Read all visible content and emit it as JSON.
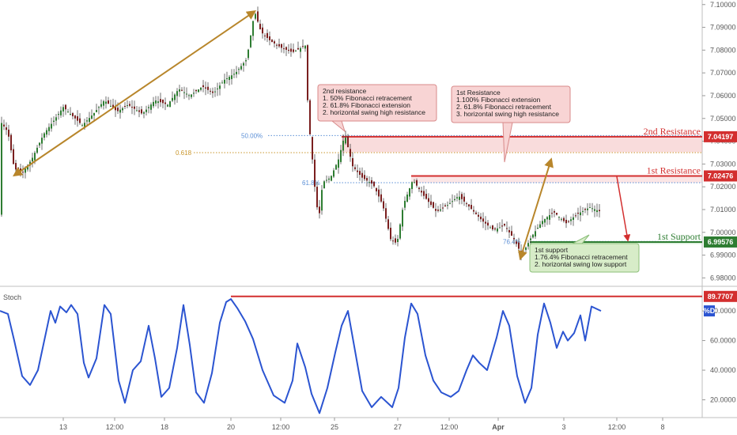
{
  "chart_data": [
    {
      "type": "candlestick",
      "price_axis": {
        "ylim": [
          6.977,
          7.102
        ],
        "ticks": [
          6.98,
          6.99,
          7.0,
          7.01,
          7.02,
          7.03,
          7.04,
          7.05,
          7.06,
          7.07,
          7.08,
          7.09,
          7.1
        ],
        "tick_labels": [
          "6.98000",
          "6.99000",
          "7.00000",
          "7.01000",
          "7.02000",
          "7.03000",
          "7.04000",
          "7.05000",
          "7.06000",
          "7.07000",
          "7.08000",
          "7.09000",
          "7.10000"
        ]
      },
      "time_axis": {
        "labels": [
          "13",
          "12:00",
          "18",
          "20",
          "12:00",
          "25",
          "27",
          "12:00",
          "Apr",
          "3",
          "12:00",
          "8"
        ]
      },
      "price_path": [
        [
          0,
          7.049
        ],
        [
          10,
          7.044
        ],
        [
          18,
          7.028
        ],
        [
          28,
          7.026
        ],
        [
          40,
          7.032
        ],
        [
          55,
          7.043
        ],
        [
          68,
          7.049
        ],
        [
          80,
          7.055
        ],
        [
          92,
          7.051
        ],
        [
          104,
          7.047
        ],
        [
          118,
          7.052
        ],
        [
          132,
          7.058
        ],
        [
          148,
          7.053
        ],
        [
          162,
          7.056
        ],
        [
          180,
          7.052
        ],
        [
          196,
          7.058
        ],
        [
          212,
          7.056
        ],
        [
          226,
          7.063
        ],
        [
          240,
          7.06
        ],
        [
          256,
          7.064
        ],
        [
          270,
          7.061
        ],
        [
          284,
          7.067
        ],
        [
          298,
          7.07
        ],
        [
          312,
          7.076
        ],
        [
          322,
          7.097
        ],
        [
          330,
          7.088
        ],
        [
          342,
          7.084
        ],
        [
          356,
          7.081
        ],
        [
          370,
          7.079
        ],
        [
          386,
          7.082
        ],
        [
          390,
          7.05
        ],
        [
          394,
          7.036
        ],
        [
          398,
          7.02
        ],
        [
          403,
          7.005
        ],
        [
          408,
          7.022
        ],
        [
          418,
          7.024
        ],
        [
          428,
          7.032
        ],
        [
          436,
          7.043
        ],
        [
          446,
          7.029
        ],
        [
          458,
          7.024
        ],
        [
          472,
          7.021
        ],
        [
          484,
          7.012
        ],
        [
          494,
          6.997
        ],
        [
          502,
          6.995
        ],
        [
          510,
          7.012
        ],
        [
          522,
          7.023
        ],
        [
          536,
          7.016
        ],
        [
          552,
          7.009
        ],
        [
          566,
          7.012
        ],
        [
          580,
          7.016
        ],
        [
          594,
          7.011
        ],
        [
          610,
          7.005
        ],
        [
          624,
          7.001
        ],
        [
          638,
          7.003
        ],
        [
          650,
          6.997
        ],
        [
          660,
          6.99
        ],
        [
          672,
          6.998
        ],
        [
          686,
          7.005
        ],
        [
          700,
          7.009
        ],
        [
          716,
          7.004
        ],
        [
          730,
          7.008
        ],
        [
          746,
          7.011
        ],
        [
          760,
          7.009
        ]
      ],
      "swings": {
        "low": [
          18,
          7.025
        ],
        "high": [
          322,
          7.097
        ]
      },
      "levels": [
        {
          "name": "2nd Resistance",
          "value": "7.04197",
          "y": 7.04197,
          "color": "#d32f2f"
        },
        {
          "name": "1st Resistance",
          "value": "7.02476",
          "y": 7.02476,
          "color": "#d32f2f"
        },
        {
          "name": "1st Support",
          "value": "6.99576",
          "y": 6.99576,
          "color": "#2e7d32"
        }
      ],
      "fibonacci": [
        {
          "label": "50.00%",
          "y": 7.0425,
          "color": "#5b8fd6"
        },
        {
          "label": "0.618",
          "y": 7.035,
          "color": "#c9962c"
        },
        {
          "label": "61.8%",
          "y": 7.0218,
          "color": "#5b8fd6"
        },
        {
          "label": "76.4%",
          "y": 6.996,
          "color": "#5b8fd6"
        }
      ],
      "annotations": [
        {
          "name": "2nd-resistance-note",
          "lines": [
            "2nd resistance",
            "1. 50% Fibonacci retracement",
            "2. 61.8% Fibonacci extension",
            "2. horizontal swing high resistance"
          ]
        },
        {
          "name": "1st-resistance-note",
          "lines": [
            "1st Resistance",
            "1.100% Fibonacci extension",
            "2. 61.8% Fibonacci retracement",
            "3. horizontal swing high resistance"
          ]
        },
        {
          "name": "1st-support-note",
          "lines": [
            "1st support",
            "1.76.4% Fibonacci retracement",
            "2. horizontal swing low support"
          ]
        }
      ]
    },
    {
      "type": "line",
      "name": "stoch",
      "title": "Stoch",
      "ylim": [
        8,
        95
      ],
      "ticks": [
        20,
        40,
        60,
        80
      ],
      "tick_labels": [
        "20.0000",
        "40.0000",
        "60.0000",
        "80.0000"
      ],
      "series": [
        {
          "legend": "%D",
          "color": "#2b54d1",
          "points": [
            [
              0,
              80
            ],
            [
              10,
              78
            ],
            [
              18,
              60
            ],
            [
              28,
              36
            ],
            [
              38,
              30
            ],
            [
              48,
              40
            ],
            [
              58,
              65
            ],
            [
              64,
              80
            ],
            [
              70,
              72
            ],
            [
              76,
              83
            ],
            [
              84,
              79
            ],
            [
              90,
              84
            ],
            [
              98,
              78
            ],
            [
              106,
              45
            ],
            [
              112,
              35
            ],
            [
              122,
              48
            ],
            [
              132,
              84
            ],
            [
              140,
              78
            ],
            [
              150,
              33
            ],
            [
              158,
              18
            ],
            [
              168,
              40
            ],
            [
              178,
              46
            ],
            [
              188,
              70
            ],
            [
              196,
              48
            ],
            [
              204,
              22
            ],
            [
              214,
              28
            ],
            [
              224,
              55
            ],
            [
              232,
              84
            ],
            [
              240,
              57
            ],
            [
              248,
              25
            ],
            [
              258,
              18
            ],
            [
              268,
              38
            ],
            [
              278,
              72
            ],
            [
              286,
              86
            ],
            [
              292,
              88
            ],
            [
              300,
              82
            ],
            [
              310,
              73
            ],
            [
              320,
              61
            ],
            [
              332,
              40
            ],
            [
              346,
              23
            ],
            [
              360,
              18
            ],
            [
              370,
              33
            ],
            [
              376,
              58
            ],
            [
              386,
              42
            ],
            [
              394,
              24
            ],
            [
              404,
              11
            ],
            [
              414,
              28
            ],
            [
              424,
              52
            ],
            [
              432,
              70
            ],
            [
              440,
              80
            ],
            [
              448,
              56
            ],
            [
              458,
              26
            ],
            [
              470,
              15
            ],
            [
              482,
              22
            ],
            [
              496,
              15
            ],
            [
              504,
              28
            ],
            [
              512,
              62
            ],
            [
              520,
              85
            ],
            [
              528,
              78
            ],
            [
              538,
              50
            ],
            [
              548,
              33
            ],
            [
              558,
              25
            ],
            [
              570,
              22
            ],
            [
              580,
              26
            ],
            [
              590,
              40
            ],
            [
              598,
              50
            ],
            [
              606,
              45
            ],
            [
              616,
              40
            ],
            [
              628,
              62
            ],
            [
              636,
              80
            ],
            [
              644,
              70
            ],
            [
              654,
              36
            ],
            [
              664,
              18
            ],
            [
              672,
              28
            ],
            [
              680,
              64
            ],
            [
              688,
              85
            ],
            [
              696,
              72
            ],
            [
              704,
              55
            ],
            [
              712,
              66
            ],
            [
              718,
              60
            ],
            [
              726,
              65
            ],
            [
              734,
              77
            ],
            [
              740,
              60
            ],
            [
              748,
              83
            ],
            [
              752,
              82
            ],
            [
              760,
              80
            ]
          ]
        }
      ],
      "level": {
        "label": "89.7707",
        "y": 89.7707,
        "color": "#d32f2f"
      }
    }
  ]
}
